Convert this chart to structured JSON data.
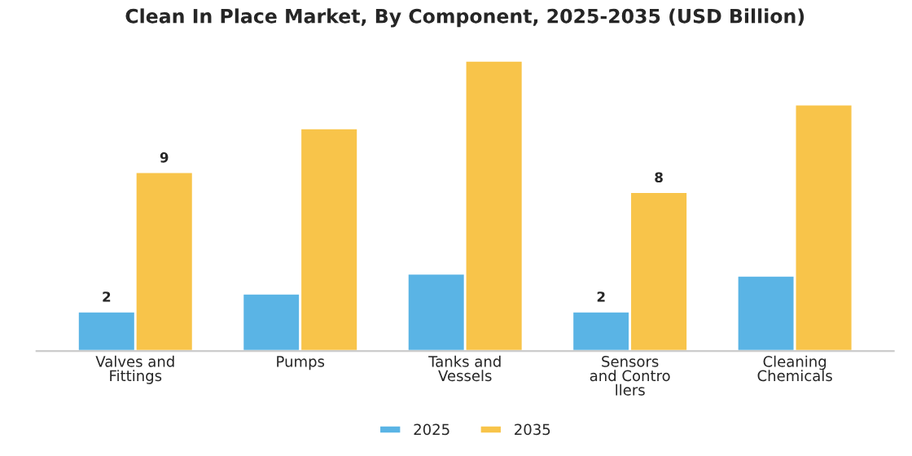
{
  "chart_data": {
    "type": "bar",
    "title": "Clean In Place Market, By Component, 2025-2035 (USD Billion)",
    "categories": [
      "Valves and\nFittings",
      "Pumps",
      "Tanks and\nVessels",
      "Sensors\nand Contro\nllers",
      "Cleaning\nChemicals"
    ],
    "tick_labels": "x",
    "legend": "bottom",
    "grid": false,
    "series": [
      {
        "name": "2025",
        "color": "#5ab4e5",
        "values": [
          2,
          2.9,
          3.9,
          2,
          3.8
        ],
        "value_labels": [
          "2",
          null,
          null,
          "2",
          null
        ]
      },
      {
        "name": "2035",
        "color": "#f8c44a",
        "values": [
          9,
          11.2,
          14.6,
          8,
          12.4
        ],
        "value_labels": [
          "9",
          null,
          null,
          "8",
          null
        ]
      }
    ]
  }
}
